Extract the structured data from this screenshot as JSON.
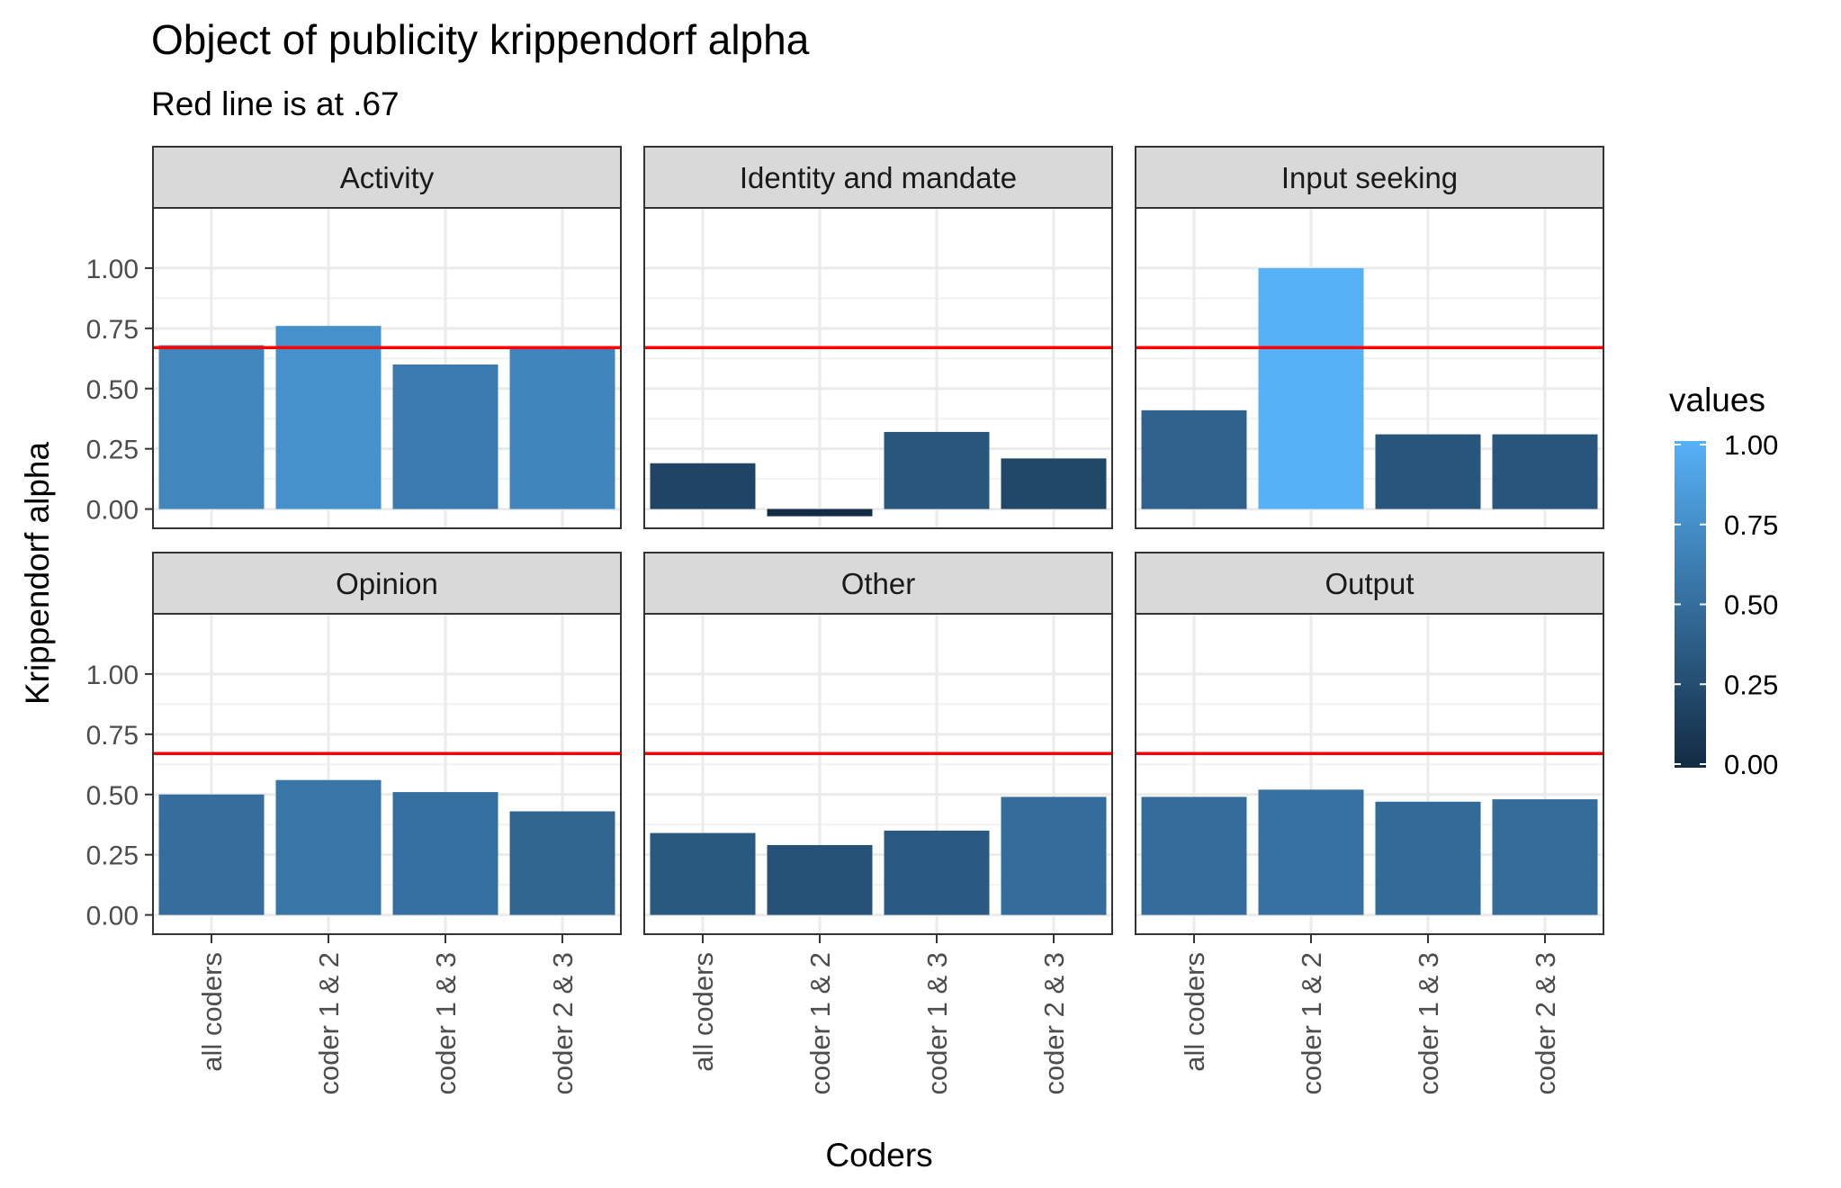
{
  "chart_data": {
    "type": "bar",
    "title": "Object of publicity krippendorf alpha",
    "subtitle": "Red line is at .67",
    "xlabel": "Coders",
    "ylabel": "Krippendorf alpha",
    "categories": [
      "all coders",
      "coder 1 & 2",
      "coder 1 & 3",
      "coder 2 & 3"
    ],
    "ylim": [
      -0.08,
      1.25
    ],
    "yticks": [
      0.0,
      0.25,
      0.5,
      0.75,
      1.0
    ],
    "ytick_labels": [
      "0.00",
      "0.25",
      "0.50",
      "0.75",
      "1.00"
    ],
    "reference_line": {
      "value": 0.67,
      "color": "#ff0000"
    },
    "grid": true,
    "facets": [
      {
        "label": "Activity",
        "values": [
          0.68,
          0.76,
          0.6,
          0.67
        ]
      },
      {
        "label": "Identity and mandate",
        "values": [
          0.19,
          -0.03,
          0.32,
          0.21
        ]
      },
      {
        "label": "Input seeking",
        "values": [
          0.41,
          1.0,
          0.31,
          0.31
        ]
      },
      {
        "label": "Opinion",
        "values": [
          0.5,
          0.56,
          0.51,
          0.43
        ]
      },
      {
        "label": "Other",
        "values": [
          0.34,
          0.29,
          0.35,
          0.49
        ]
      },
      {
        "label": "Output",
        "values": [
          0.49,
          0.52,
          0.47,
          0.48
        ]
      }
    ],
    "legend": {
      "title": "values",
      "position": "right",
      "ticks": [
        "0.00",
        "0.25",
        "0.50",
        "0.75",
        "1.00"
      ],
      "colors": {
        "low": "#132B43",
        "high": "#56B1F7"
      }
    }
  }
}
